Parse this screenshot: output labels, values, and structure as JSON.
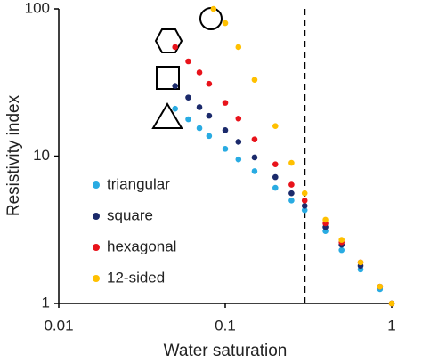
{
  "chart_data": {
    "type": "scatter",
    "x_label": "Water saturation",
    "y_label": "Resistivity index",
    "xscale": "log",
    "yscale": "log",
    "xlim": [
      0.01,
      1
    ],
    "ylim": [
      1,
      100
    ],
    "xticks": [
      0.01,
      0.1,
      1
    ],
    "yticks": [
      1,
      10,
      100
    ],
    "grid": false,
    "legend": "lower left",
    "vline": 0.3,
    "series": [
      {
        "name": "triangular",
        "color": "#29abe2",
        "x": [
          0.05,
          0.06,
          0.07,
          0.08,
          0.1,
          0.12,
          0.15,
          0.2,
          0.25,
          0.3,
          0.4,
          0.5,
          0.65,
          0.85,
          1.0
        ],
        "values": [
          21,
          17.8,
          15.5,
          13.7,
          11.2,
          9.5,
          7.9,
          6.1,
          5.0,
          4.3,
          3.1,
          2.3,
          1.7,
          1.25,
          1.0
        ]
      },
      {
        "name": "square",
        "color": "#1b2a6b",
        "x": [
          0.05,
          0.06,
          0.07,
          0.08,
          0.1,
          0.12,
          0.15,
          0.2,
          0.25,
          0.3,
          0.4,
          0.5,
          0.65,
          0.85,
          1.0
        ],
        "values": [
          30,
          25,
          21.5,
          18.8,
          15,
          12.5,
          9.8,
          7.2,
          5.6,
          4.6,
          3.3,
          2.5,
          1.8,
          1.3,
          1.0
        ]
      },
      {
        "name": "hexagonal",
        "color": "#e8131b",
        "x": [
          0.05,
          0.06,
          0.07,
          0.08,
          0.1,
          0.12,
          0.15,
          0.2,
          0.25,
          0.3,
          0.4,
          0.5,
          0.65,
          0.85,
          1.0
        ],
        "values": [
          55,
          44,
          37,
          31,
          23,
          18,
          13,
          8.8,
          6.4,
          5.0,
          3.5,
          2.6,
          1.9,
          1.3,
          1.0
        ]
      },
      {
        "name": "12-sided",
        "color": "#ffc000",
        "x": [
          0.085,
          0.1,
          0.12,
          0.15,
          0.2,
          0.25,
          0.3,
          0.4,
          0.5,
          0.65,
          0.85,
          1.0
        ],
        "values": [
          100,
          80,
          55,
          33,
          16,
          9,
          5.6,
          3.7,
          2.7,
          1.9,
          1.3,
          1.0
        ]
      }
    ]
  }
}
